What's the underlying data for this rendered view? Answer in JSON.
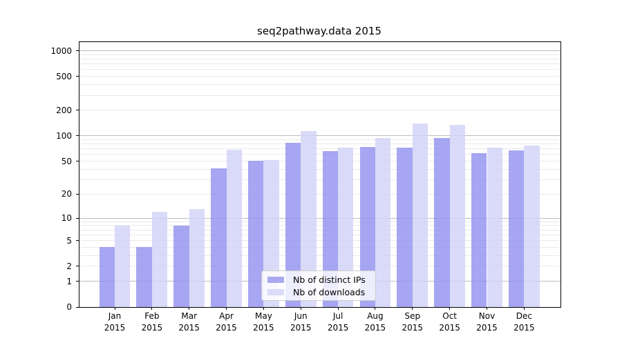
{
  "title": "seq2pathway.data 2015",
  "chart_data": {
    "type": "bar",
    "title": "seq2pathway.data 2015",
    "categories": [
      "Jan",
      "Feb",
      "Mar",
      "Apr",
      "May",
      "Jun",
      "Jul",
      "Aug",
      "Sep",
      "Oct",
      "Nov",
      "Dec"
    ],
    "year_label": "2015",
    "series": [
      {
        "name": "Nb of distinct IPs",
        "color": "rgba(146,146,239,0.82)",
        "legend_color": "#a9a9f1",
        "values": [
          4,
          4,
          8,
          41,
          51,
          82,
          66,
          74,
          73,
          95,
          62,
          67
        ]
      },
      {
        "name": "Nb of downloads",
        "color": "rgba(210,210,248,0.82)",
        "legend_color": "#dcdcf9",
        "values": [
          8,
          12,
          13,
          69,
          52,
          113,
          72,
          94,
          140,
          135,
          73,
          76
        ]
      }
    ],
    "ytick_labels": [
      "1000",
      "500",
      "200",
      "100",
      "50",
      "20",
      "10",
      "5",
      "2",
      "1",
      "0"
    ],
    "ytick_values": [
      1000,
      500,
      200,
      100,
      50,
      20,
      10,
      5,
      2,
      1,
      0
    ],
    "scale": "log1p",
    "ylim": [
      0,
      1263
    ],
    "grid": "on",
    "legend_position": "lower-center",
    "xlabel": "",
    "ylabel": ""
  }
}
